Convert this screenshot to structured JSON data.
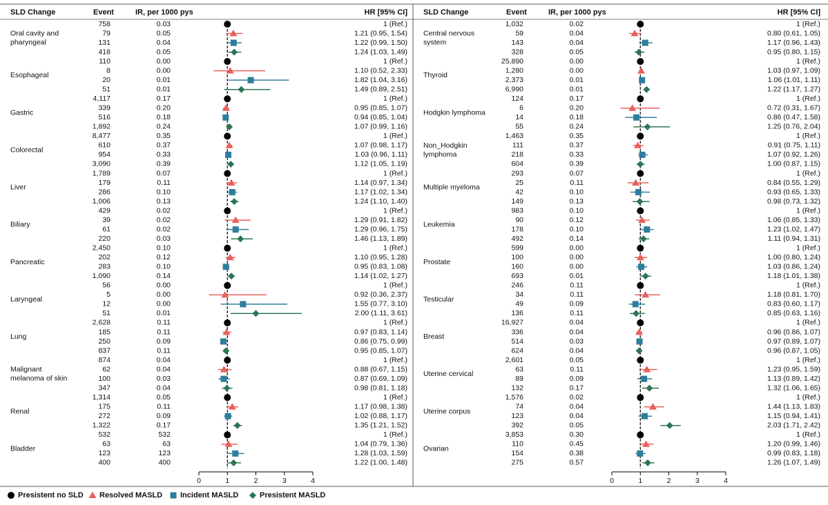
{
  "chart_data": [
    {
      "type": "forest",
      "headers": {
        "group": "SLD Change",
        "event": "Event",
        "ir": "IR, per 1000 pys",
        "hr": "HR [95% CI]"
      },
      "xlim": [
        0,
        4
      ],
      "xticks": [
        0,
        1,
        2,
        3,
        4
      ],
      "ref_line": 1,
      "groups": [
        {
          "label": [
            "Oral cavity and",
            "pharyngeal"
          ],
          "event": [
            "758",
            "79",
            "131",
            "418"
          ],
          "ir": [
            "0.03",
            "0.05",
            "0.04",
            "0.05"
          ],
          "values": [
            1,
            1.21,
            1.22,
            1.24
          ],
          "lower": [
            null,
            0.95,
            0.99,
            1.03
          ],
          "upper": [
            null,
            1.54,
            1.5,
            1.49
          ],
          "value_labels": [
            "1 (Ref.)",
            "1.21 (0.95, 1.54)",
            "1.22 (0.99, 1.50)",
            "1.24 (1.03, 1.49)"
          ]
        },
        {
          "label": [
            "Esophageal"
          ],
          "event": [
            "110",
            "8",
            "20",
            "51"
          ],
          "ir": [
            "0.00",
            "0.00",
            "0.01",
            "0.01"
          ],
          "values": [
            1,
            1.1,
            1.82,
            1.49
          ],
          "lower": [
            null,
            0.52,
            1.04,
            0.89
          ],
          "upper": [
            null,
            2.33,
            3.16,
            2.51
          ],
          "value_labels": [
            "1 (Ref.)",
            "1.10 (0.52, 2.33)",
            "1.82 (1.04, 3.16)",
            "1.49 (0.89, 2.51)"
          ]
        },
        {
          "label": [
            "Gastric"
          ],
          "event": [
            "4,117",
            "339",
            "516",
            "1,892"
          ],
          "ir": [
            "0.17",
            "0.20",
            "0.18",
            "0.24"
          ],
          "values": [
            1,
            0.95,
            0.94,
            1.07
          ],
          "lower": [
            null,
            0.85,
            0.85,
            0.99
          ],
          "upper": [
            null,
            1.07,
            1.04,
            1.16
          ],
          "value_labels": [
            "1 (Ref.)",
            "0.95 (0.85, 1.07)",
            "0.94 (0.85, 1.04)",
            "1.07 (0.99, 1.16)"
          ]
        },
        {
          "label": [
            "Colorectal"
          ],
          "event": [
            "8,477",
            "610",
            "954",
            "3,090"
          ],
          "ir": [
            "0.35",
            "0.37",
            "0.33",
            "0.39"
          ],
          "values": [
            1,
            1.07,
            1.03,
            1.12
          ],
          "lower": [
            null,
            0.98,
            0.96,
            1.05
          ],
          "upper": [
            null,
            1.17,
            1.11,
            1.19
          ],
          "value_labels": [
            "1 (Ref.)",
            "1.07 (0.98, 1.17)",
            "1.03 (0.96, 1.11)",
            "1.12 (1.05, 1.19)"
          ]
        },
        {
          "label": [
            "Liver"
          ],
          "event": [
            "1,789",
            "179",
            "286",
            "1,006"
          ],
          "ir": [
            "0.07",
            "0.11",
            "0.10",
            "0.13"
          ],
          "values": [
            1,
            1.14,
            1.17,
            1.24
          ],
          "lower": [
            null,
            0.97,
            1.02,
            1.1
          ],
          "upper": [
            null,
            1.34,
            1.34,
            1.4
          ],
          "value_labels": [
            "1 (Ref.)",
            "1.14 (0.97, 1.34)",
            "1.17 (1.02, 1.34)",
            "1.24 (1.10, 1.40)"
          ]
        },
        {
          "label": [
            "Biliary"
          ],
          "event": [
            "429",
            "39",
            "61",
            "220"
          ],
          "ir": [
            "0.02",
            "0.02",
            "0.02",
            "0.03"
          ],
          "values": [
            1,
            1.29,
            1.29,
            1.46
          ],
          "lower": [
            null,
            0.91,
            0.96,
            1.13
          ],
          "upper": [
            null,
            1.82,
            1.75,
            1.89
          ],
          "value_labels": [
            "1 (Ref.)",
            "1.29 (0.91, 1.82)",
            "1.29 (0.96, 1.75)",
            "1.46 (1.13, 1.89)"
          ]
        },
        {
          "label": [
            "Pancreatic"
          ],
          "event": [
            "2,450",
            "202",
            "283",
            "1,090"
          ],
          "ir": [
            "0.10",
            "0.12",
            "0.10",
            "0.14"
          ],
          "values": [
            1,
            1.1,
            0.95,
            1.14
          ],
          "lower": [
            null,
            0.95,
            0.83,
            1.02
          ],
          "upper": [
            null,
            1.28,
            1.08,
            1.27
          ],
          "value_labels": [
            "1 (Ref.)",
            "1.10 (0.95, 1.28)",
            "0.95 (0.83, 1.08)",
            "1.14 (1.02, 1.27)"
          ]
        },
        {
          "label": [
            "Laryngeal"
          ],
          "event": [
            "56",
            "5",
            "12",
            "51"
          ],
          "ir": [
            "0.00",
            "0.00",
            "0.00",
            "0.01"
          ],
          "values": [
            1,
            0.92,
            1.55,
            2.0
          ],
          "lower": [
            null,
            0.36,
            0.77,
            1.11
          ],
          "upper": [
            null,
            2.37,
            3.1,
            3.61
          ],
          "value_labels": [
            "1 (Ref.)",
            "0.92 (0.36, 2.37)",
            "1.55 (0.77, 3.10)",
            "2.00 (1.11, 3.61)"
          ]
        },
        {
          "label": [
            "Lung"
          ],
          "event": [
            "2,628",
            "185",
            "250",
            "837"
          ],
          "ir": [
            "0.11",
            "0.11",
            "0.09",
            "0.11"
          ],
          "values": [
            1,
            0.97,
            0.86,
            0.95
          ],
          "lower": [
            null,
            0.83,
            0.75,
            0.85
          ],
          "upper": [
            null,
            1.14,
            0.99,
            1.07
          ],
          "value_labels": [
            "1 (Ref.)",
            "0.97 (0.83, 1.14)",
            "0.86 (0.75, 0.99)",
            "0.95 (0.85, 1.07)"
          ]
        },
        {
          "label": [
            "Malignant",
            "melanoma of skin"
          ],
          "event": [
            "874",
            "62",
            "100",
            "347"
          ],
          "ir": [
            "0.04",
            "0.04",
            "0.03",
            "0.04"
          ],
          "values": [
            1,
            0.88,
            0.87,
            0.98
          ],
          "lower": [
            null,
            0.67,
            0.69,
            0.81
          ],
          "upper": [
            null,
            1.15,
            1.09,
            1.18
          ],
          "value_labels": [
            "1 (Ref.)",
            "0.88 (0.67, 1.15)",
            "0.87 (0.69, 1.09)",
            "0.98 (0.81, 1.18)"
          ]
        },
        {
          "label": [
            "Renal"
          ],
          "event": [
            "1,314",
            "175",
            "272",
            "1,322"
          ],
          "ir": [
            "0.05",
            "0.11",
            "0.09",
            "0.17"
          ],
          "values": [
            1,
            1.17,
            1.02,
            1.35
          ],
          "lower": [
            null,
            0.98,
            0.88,
            1.21
          ],
          "upper": [
            null,
            1.38,
            1.17,
            1.52
          ],
          "value_labels": [
            "1 (Ref.)",
            "1.17 (0.98, 1.38)",
            "1.02 (0.88, 1.17)",
            "1.35 (1.21, 1.52)"
          ]
        },
        {
          "label": [
            "Bladder"
          ],
          "event": [
            "532",
            "63",
            "123",
            "400"
          ],
          "ir": [
            "532",
            "63",
            "123",
            "400"
          ],
          "values": [
            1,
            1.04,
            1.28,
            1.22
          ],
          "lower": [
            null,
            0.79,
            1.03,
            1.0
          ],
          "upper": [
            null,
            1.36,
            1.59,
            1.48
          ],
          "value_labels": [
            "1 (Ref.)",
            "1.04 (0.79, 1.36)",
            "1.28 (1.03, 1.59)",
            "1.22 (1.00, 1.48)"
          ]
        }
      ]
    },
    {
      "type": "forest",
      "headers": {
        "group": "SLD Change",
        "event": "Event",
        "ir": "IR, per 1000 pys",
        "hr": "HR [95% CI]"
      },
      "xlim": [
        0,
        4
      ],
      "xticks": [
        0,
        1,
        2,
        3,
        4
      ],
      "ref_line": 1,
      "groups": [
        {
          "label": [
            "Central nervous",
            "system"
          ],
          "event": [
            "1,032",
            "59",
            "143",
            "328"
          ],
          "ir": [
            "0.02",
            "0.04",
            "0.04",
            "0.05"
          ],
          "values": [
            1,
            0.8,
            1.17,
            0.95
          ],
          "lower": [
            null,
            0.61,
            0.96,
            0.8
          ],
          "upper": [
            null,
            1.05,
            1.43,
            1.15
          ],
          "value_labels": [
            "1 (Ref.)",
            "0.80 (0.61, 1.05)",
            "1.17 (0.96, 1.43)",
            "0.95 (0.80, 1.15)"
          ]
        },
        {
          "label": [
            "Thyroid"
          ],
          "event": [
            "25,890",
            "1,280",
            "2,373",
            "6,990"
          ],
          "ir": [
            "0.00",
            "0.00",
            "0.01",
            "0.01"
          ],
          "values": [
            1,
            1.03,
            1.06,
            1.22
          ],
          "lower": [
            null,
            0.97,
            1.01,
            1.17
          ],
          "upper": [
            null,
            1.09,
            1.11,
            1.27
          ],
          "value_labels": [
            "1 (Ref.)",
            "1.03 (0.97, 1.09)",
            "1.06 (1.01, 1.11)",
            "1.22 (1.17, 1.27)"
          ]
        },
        {
          "label": [
            "Hodgkin lymphoma"
          ],
          "event": [
            "124",
            "6",
            "14",
            "55"
          ],
          "ir": [
            "0.17",
            "0.20",
            "0.18",
            "0.24"
          ],
          "values": [
            1,
            0.72,
            0.86,
            1.25
          ],
          "lower": [
            null,
            0.31,
            0.47,
            0.76
          ],
          "upper": [
            null,
            1.67,
            1.58,
            2.04
          ],
          "value_labels": [
            "1 (Ref.)",
            "0.72 (0.31, 1.67)",
            "0.86 (0.47, 1.58)",
            "1.25 (0.76, 2.04)"
          ]
        },
        {
          "label": [
            "Non_Hodgkin",
            "lymphoma"
          ],
          "event": [
            "1,463",
            "111",
            "218",
            "604"
          ],
          "ir": [
            "0.35",
            "0.37",
            "0.33",
            "0.39"
          ],
          "values": [
            1,
            0.91,
            1.07,
            1.0
          ],
          "lower": [
            null,
            0.75,
            0.92,
            0.87
          ],
          "upper": [
            null,
            1.11,
            1.26,
            1.15
          ],
          "value_labels": [
            "1 (Ref.)",
            "0.91 (0.75, 1.11)",
            "1.07 (0.92, 1.26)",
            "1.00 (0.87, 1.15)"
          ]
        },
        {
          "label": [
            "Multiple myeloma"
          ],
          "event": [
            "293",
            "25",
            "42",
            "149"
          ],
          "ir": [
            "0.07",
            "0.11",
            "0.10",
            "0.13"
          ],
          "values": [
            1,
            0.84,
            0.93,
            0.98
          ],
          "lower": [
            null,
            0.55,
            0.65,
            0.73
          ],
          "upper": [
            null,
            1.29,
            1.33,
            1.32
          ],
          "value_labels": [
            "1 (Ref.)",
            "0.84 (0.55, 1.29)",
            "0.93 (0.65, 1.33)",
            "0.98 (0.73, 1.32)"
          ]
        },
        {
          "label": [
            "Leukemia"
          ],
          "event": [
            "983",
            "90",
            "178",
            "492"
          ],
          "ir": [
            "0.10",
            "0.12",
            "0.10",
            "0.14"
          ],
          "values": [
            1,
            1.06,
            1.23,
            1.11
          ],
          "lower": [
            null,
            0.85,
            1.02,
            0.94
          ],
          "upper": [
            null,
            1.33,
            1.47,
            1.31
          ],
          "value_labels": [
            "1 (Ref.)",
            "1.06 (0.85, 1.33)",
            "1.23 (1.02, 1.47)",
            "1.11 (0.94, 1.31)"
          ]
        },
        {
          "label": [
            "Prostate"
          ],
          "event": [
            "599",
            "100",
            "160",
            "693"
          ],
          "ir": [
            "0.00",
            "0.00",
            "0.00",
            "0.01"
          ],
          "values": [
            1,
            1.0,
            1.03,
            1.18
          ],
          "lower": [
            null,
            0.8,
            0.86,
            1.01
          ],
          "upper": [
            null,
            1.24,
            1.24,
            1.38
          ],
          "value_labels": [
            "1 (Ref.)",
            "1.00 (0.80, 1.24)",
            "1.03 (0.86, 1.24)",
            "1.18 (1.01, 1.38)"
          ]
        },
        {
          "label": [
            "Testicular"
          ],
          "event": [
            "246",
            "34",
            "49",
            "136"
          ],
          "ir": [
            "0.11",
            "0.11",
            "0.09",
            "0.11"
          ],
          "values": [
            1,
            1.18,
            0.83,
            0.85
          ],
          "lower": [
            null,
            0.81,
            0.6,
            0.63
          ],
          "upper": [
            null,
            1.7,
            1.17,
            1.16
          ],
          "value_labels": [
            "1 (Ref.)",
            "1.18 (0.81, 1.70)",
            "0.83 (0.60, 1.17)",
            "0.85 (0.63, 1.16)"
          ]
        },
        {
          "label": [
            "Breast"
          ],
          "event": [
            "16,927",
            "336",
            "514",
            "624"
          ],
          "ir": [
            "0.04",
            "0.04",
            "0.03",
            "0.04"
          ],
          "values": [
            1,
            0.96,
            0.97,
            0.96
          ],
          "lower": [
            null,
            0.86,
            0.89,
            0.87
          ],
          "upper": [
            null,
            1.07,
            1.07,
            1.05
          ],
          "value_labels": [
            "1 (Ref.)",
            "0.96 (0.86, 1.07)",
            "0.97 (0.89, 1.07)",
            "0.96 (0.87, 1.05)"
          ]
        },
        {
          "label": [
            "Uterine cervical"
          ],
          "event": [
            "2,601",
            "63",
            "89",
            "132"
          ],
          "ir": [
            "0.05",
            "0.11",
            "0.09",
            "0.17"
          ],
          "values": [
            1,
            1.23,
            1.13,
            1.32
          ],
          "lower": [
            null,
            0.95,
            0.89,
            1.06
          ],
          "upper": [
            null,
            1.59,
            1.42,
            1.65
          ],
          "value_labels": [
            "1 (Ref.)",
            "1.23 (0.95, 1.59)",
            "1.13 (0.89, 1.42)",
            "1.32 (1.06, 1.65)"
          ]
        },
        {
          "label": [
            "Uterine corpus"
          ],
          "event": [
            "1,576",
            "74",
            "123",
            "392"
          ],
          "ir": [
            "0.02",
            "0.04",
            "0.04",
            "0.05"
          ],
          "values": [
            1,
            1.44,
            1.15,
            2.03
          ],
          "lower": [
            null,
            1.13,
            0.94,
            1.71
          ],
          "upper": [
            null,
            1.83,
            1.41,
            2.42
          ],
          "value_labels": [
            "1 (Ref.)",
            "1.44 (1.13, 1.83)",
            "1.15 (0.94, 1.41)",
            "2.03 (1.71, 2.42)"
          ]
        },
        {
          "label": [
            "Ovarian"
          ],
          "event": [
            "3,853",
            "110",
            "154",
            "275"
          ],
          "ir": [
            "0.30",
            "0.45",
            "0.38",
            "0.57"
          ],
          "values": [
            1,
            1.2,
            0.99,
            1.26
          ],
          "lower": [
            null,
            0.99,
            0.83,
            1.07
          ],
          "upper": [
            null,
            1.46,
            1.18,
            1.49
          ],
          "value_labels": [
            "1 (Ref.)",
            "1.20 (0.99, 1.46)",
            "0.99 (0.83, 1.18)",
            "1.26 (1.07, 1.49)"
          ]
        }
      ]
    }
  ],
  "legend": [
    {
      "name": "Presistent no SLD",
      "color": "#000000",
      "shape": "circle"
    },
    {
      "name": "Resolved MASLD",
      "color": "#e8605a",
      "shape": "triangle"
    },
    {
      "name": "Incident MASLD",
      "color": "#2e7d9e",
      "shape": "square"
    },
    {
      "name": "Presistent MASLD",
      "color": "#2e7553",
      "shape": "diamond"
    }
  ]
}
